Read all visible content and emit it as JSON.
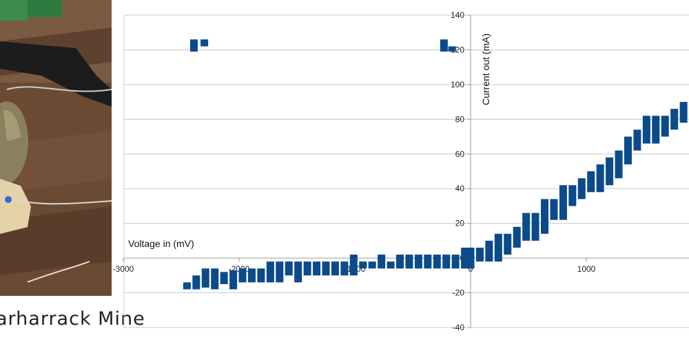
{
  "caption": "arharrack Mine",
  "chart_data": {
    "type": "scatter",
    "title": "",
    "xlabel": "Voltage in (mV)",
    "ylabel": "Current out (mA)",
    "xlim": [
      -3000,
      1900
    ],
    "ylim": [
      -40,
      140
    ],
    "x_ticks": [
      -3000,
      -2000,
      -1000,
      0,
      1000
    ],
    "x_tick_labels": [
      "-3000",
      "-2000",
      "-1000",
      "0",
      "1000"
    ],
    "y_ticks": [
      -40,
      -20,
      0,
      20,
      40,
      60,
      80,
      100,
      120,
      140
    ],
    "y_tick_labels": [
      "-40",
      "-20",
      "0",
      "20",
      "40",
      "60",
      "80",
      "100",
      "120",
      "140"
    ],
    "grid": "horizontal",
    "marker": "rectangle",
    "colors": {
      "series": "#0b4a8b",
      "grid": "#c8c8c8",
      "axis": "#9a9a9a"
    },
    "series": [
      {
        "points": [
          {
            "x": -2450,
            "y_min": -18,
            "y_max": -14
          },
          {
            "x": -2370,
            "y_min": -18,
            "y_max": -10
          },
          {
            "x": -2390,
            "y_min": 119,
            "y_max": 126
          },
          {
            "x": -2300,
            "y_min": 122,
            "y_max": 126
          },
          {
            "x": -2290,
            "y_min": -17,
            "y_max": -6
          },
          {
            "x": -2210,
            "y_min": -18,
            "y_max": -6
          },
          {
            "x": -2130,
            "y_min": -15,
            "y_max": -8
          },
          {
            "x": -2050,
            "y_min": -18,
            "y_max": -7
          },
          {
            "x": -1970,
            "y_min": -14,
            "y_max": -6
          },
          {
            "x": -1890,
            "y_min": -14,
            "y_max": -6
          },
          {
            "x": -1810,
            "y_min": -14,
            "y_max": -6
          },
          {
            "x": -1730,
            "y_min": -14,
            "y_max": -2
          },
          {
            "x": -1650,
            "y_min": -14,
            "y_max": -2
          },
          {
            "x": -1570,
            "y_min": -10,
            "y_max": -2
          },
          {
            "x": -1490,
            "y_min": -14,
            "y_max": -2
          },
          {
            "x": -1410,
            "y_min": -10,
            "y_max": -2
          },
          {
            "x": -1330,
            "y_min": -10,
            "y_max": -2
          },
          {
            "x": -1250,
            "y_min": -10,
            "y_max": -2
          },
          {
            "x": -1170,
            "y_min": -10,
            "y_max": -2
          },
          {
            "x": -1090,
            "y_min": -10,
            "y_max": -2
          },
          {
            "x": -1010,
            "y_min": -10,
            "y_max": 2
          },
          {
            "x": -930,
            "y_min": -6,
            "y_max": -2
          },
          {
            "x": -850,
            "y_min": -6,
            "y_max": -2
          },
          {
            "x": -770,
            "y_min": -6,
            "y_max": 2
          },
          {
            "x": -690,
            "y_min": -6,
            "y_max": -2
          },
          {
            "x": -610,
            "y_min": -6,
            "y_max": 2
          },
          {
            "x": -530,
            "y_min": -6,
            "y_max": 2
          },
          {
            "x": -450,
            "y_min": -6,
            "y_max": 2
          },
          {
            "x": -370,
            "y_min": -6,
            "y_max": 2
          },
          {
            "x": -290,
            "y_min": -6,
            "y_max": 2
          },
          {
            "x": -230,
            "y_min": 119,
            "y_max": 126
          },
          {
            "x": -160,
            "y_min": 119,
            "y_max": 122
          },
          {
            "x": -210,
            "y_min": -6,
            "y_max": 2
          },
          {
            "x": -130,
            "y_min": -6,
            "y_max": 2
          },
          {
            "x": -50,
            "y_min": -6,
            "y_max": 6
          },
          {
            "x": 0,
            "y_min": -6,
            "y_max": 6
          },
          {
            "x": 80,
            "y_min": -2,
            "y_max": 6
          },
          {
            "x": 160,
            "y_min": -2,
            "y_max": 10
          },
          {
            "x": 240,
            "y_min": -2,
            "y_max": 14
          },
          {
            "x": 320,
            "y_min": 2,
            "y_max": 14
          },
          {
            "x": 400,
            "y_min": 6,
            "y_max": 18
          },
          {
            "x": 480,
            "y_min": 10,
            "y_max": 26
          },
          {
            "x": 560,
            "y_min": 10,
            "y_max": 26
          },
          {
            "x": 640,
            "y_min": 14,
            "y_max": 34
          },
          {
            "x": 720,
            "y_min": 22,
            "y_max": 34
          },
          {
            "x": 800,
            "y_min": 22,
            "y_max": 42
          },
          {
            "x": 880,
            "y_min": 30,
            "y_max": 42
          },
          {
            "x": 960,
            "y_min": 34,
            "y_max": 46
          },
          {
            "x": 1040,
            "y_min": 38,
            "y_max": 50
          },
          {
            "x": 1120,
            "y_min": 38,
            "y_max": 54
          },
          {
            "x": 1200,
            "y_min": 42,
            "y_max": 58
          },
          {
            "x": 1280,
            "y_min": 46,
            "y_max": 62
          },
          {
            "x": 1360,
            "y_min": 54,
            "y_max": 70
          },
          {
            "x": 1440,
            "y_min": 62,
            "y_max": 74
          },
          {
            "x": 1520,
            "y_min": 66,
            "y_max": 82
          },
          {
            "x": 1600,
            "y_min": 66,
            "y_max": 82
          },
          {
            "x": 1680,
            "y_min": 70,
            "y_max": 82
          },
          {
            "x": 1760,
            "y_min": 74,
            "y_max": 86
          },
          {
            "x": 1840,
            "y_min": 78,
            "y_max": 90
          }
        ]
      }
    ]
  }
}
